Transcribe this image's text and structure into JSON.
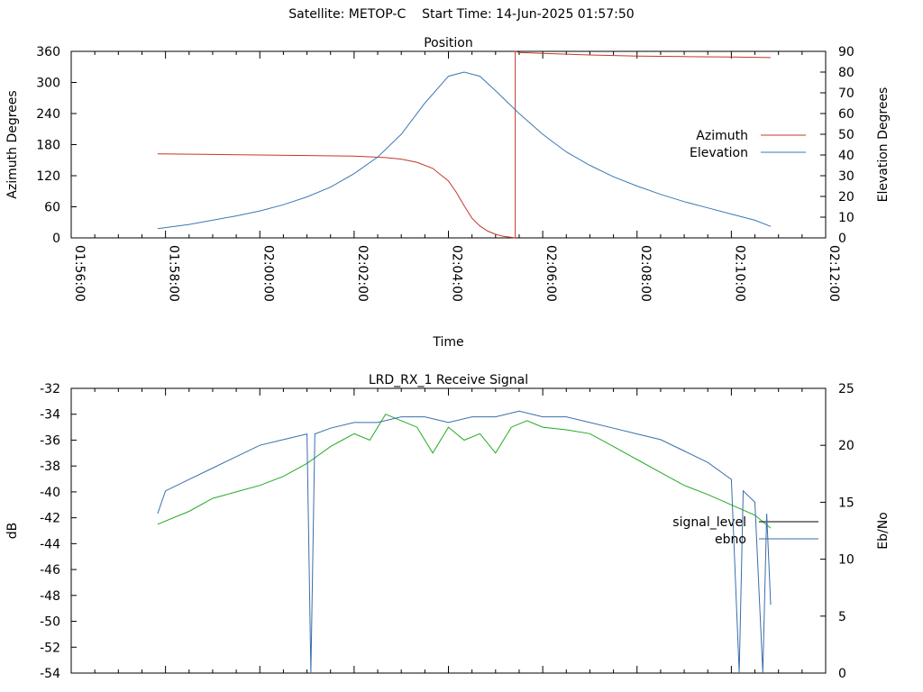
{
  "header": {
    "satellite_label": "Satellite: METOP-C",
    "start_time_label": "Start Time: 14-Jun-2025 01:57:50"
  },
  "colors": {
    "azimuth": "#c0392b",
    "elevation": "#3a78b5",
    "signal_level": "#22aa22",
    "ebno": "#3a6eaa",
    "axis": "#000000"
  },
  "chart_data": [
    {
      "type": "line",
      "title": "Position",
      "xlabel": "Time",
      "ylabel": "Azimuth Degrees",
      "y2label": "Elevation Degrees",
      "xlim": [
        "01:56:00",
        "02:12:00"
      ],
      "ylim": [
        0,
        360
      ],
      "y2lim": [
        0,
        90
      ],
      "x_ticks": [
        "01:56:00",
        "01:58:00",
        "02:00:00",
        "02:02:00",
        "02:04:00",
        "02:06:00",
        "02:08:00",
        "02:10:00",
        "02:12:00"
      ],
      "y_ticks": [
        "0",
        "60",
        "120",
        "180",
        "240",
        "300",
        "360"
      ],
      "y2_ticks": [
        "0",
        "10",
        "20",
        "30",
        "40",
        "50",
        "60",
        "70",
        "80",
        "90"
      ],
      "legend_position": "right",
      "series": [
        {
          "name": "Azimuth",
          "axis": "y",
          "x": [
            "01:57:50",
            "01:59:00",
            "02:00:00",
            "02:01:00",
            "02:02:00",
            "02:02:40",
            "02:03:00",
            "02:03:20",
            "02:03:40",
            "02:04:00",
            "02:04:10",
            "02:04:20",
            "02:04:30",
            "02:04:40",
            "02:04:50",
            "02:05:00",
            "02:05:10",
            "02:05:20",
            "02:05:25",
            "02:05:25",
            "02:05:30",
            "02:06:00",
            "02:07:00",
            "02:08:00",
            "02:09:00",
            "02:10:00",
            "02:10:50"
          ],
          "values": [
            162,
            161,
            160,
            159,
            158,
            155,
            152,
            146,
            134,
            110,
            88,
            62,
            38,
            23,
            13,
            7,
            3,
            1,
            0,
            360,
            358,
            356,
            353,
            351,
            350,
            349,
            348
          ]
        },
        {
          "name": "Elevation",
          "axis": "y2",
          "x": [
            "01:57:50",
            "01:58:30",
            "01:59:00",
            "01:59:30",
            "02:00:00",
            "02:00:30",
            "02:01:00",
            "02:01:30",
            "02:02:00",
            "02:02:30",
            "02:03:00",
            "02:03:30",
            "02:04:00",
            "02:04:20",
            "02:04:40",
            "02:05:00",
            "02:05:30",
            "02:06:00",
            "02:06:30",
            "02:07:00",
            "02:07:30",
            "02:08:00",
            "02:08:30",
            "02:09:00",
            "02:09:30",
            "02:10:00",
            "02:10:30",
            "02:10:50"
          ],
          "values": [
            4.5,
            6.5,
            8.5,
            10.6,
            13.0,
            16.0,
            19.8,
            24.5,
            31.0,
            39.0,
            50.0,
            65.0,
            78.0,
            80.0,
            78.0,
            71.0,
            60.0,
            50.0,
            41.5,
            35.0,
            29.5,
            25.0,
            21.0,
            17.5,
            14.5,
            11.5,
            8.5,
            5.5
          ]
        }
      ]
    },
    {
      "type": "line",
      "title": "LRD_RX_1 Receive Signal",
      "xlabel": "",
      "ylabel": "dB",
      "y2label": "Eb/No",
      "xlim": [
        "01:56:00",
        "02:12:00"
      ],
      "ylim": [
        -54,
        -32
      ],
      "y2lim": [
        0,
        25
      ],
      "y_ticks": [
        "-32",
        "-34",
        "-36",
        "-38",
        "-40",
        "-42",
        "-44",
        "-46",
        "-48",
        "-50",
        "-52",
        "-54"
      ],
      "y2_ticks": [
        "0",
        "5",
        "10",
        "15",
        "20",
        "25"
      ],
      "legend_position": "right",
      "series": [
        {
          "name": "signal_level",
          "axis": "y",
          "x": [
            "01:57:50",
            "01:58:30",
            "01:59:00",
            "01:59:30",
            "02:00:00",
            "02:00:30",
            "02:01:00",
            "02:01:30",
            "02:02:00",
            "02:02:20",
            "02:02:40",
            "02:03:00",
            "02:03:20",
            "02:03:40",
            "02:04:00",
            "02:04:20",
            "02:04:40",
            "02:05:00",
            "02:05:20",
            "02:05:40",
            "02:06:00",
            "02:06:30",
            "02:07:00",
            "02:07:30",
            "02:08:00",
            "02:08:30",
            "02:09:00",
            "02:09:30",
            "02:10:00",
            "02:10:30",
            "02:10:50"
          ],
          "values": [
            -42.5,
            -41.5,
            -40.5,
            -40.0,
            -39.5,
            -38.8,
            -37.8,
            -36.5,
            -35.5,
            -36.0,
            -34.0,
            -34.5,
            -35.0,
            -37.0,
            -35.0,
            -36.0,
            -35.5,
            -37.0,
            -35.0,
            -34.5,
            -35.0,
            -35.2,
            -35.5,
            -36.5,
            -37.5,
            -38.5,
            -39.5,
            -40.2,
            -41.0,
            -41.8,
            -42.8
          ]
        },
        {
          "name": "ebno",
          "axis": "y2",
          "x": [
            "01:57:50",
            "01:58:00",
            "01:58:30",
            "01:59:00",
            "01:59:30",
            "02:00:00",
            "02:00:30",
            "02:01:00",
            "02:01:05",
            "02:01:10",
            "02:01:30",
            "02:02:00",
            "02:02:30",
            "02:03:00",
            "02:03:30",
            "02:04:00",
            "02:04:30",
            "02:05:00",
            "02:05:30",
            "02:06:00",
            "02:06:30",
            "02:07:00",
            "02:07:30",
            "02:08:00",
            "02:08:30",
            "02:09:00",
            "02:09:30",
            "02:10:00",
            "02:10:10",
            "02:10:15",
            "02:10:30",
            "02:10:40",
            "02:10:45",
            "02:10:50"
          ],
          "values": [
            14.0,
            16.0,
            17.0,
            18.0,
            19.0,
            20.0,
            20.5,
            21.0,
            0.0,
            21.0,
            21.5,
            22.0,
            22.0,
            22.5,
            22.5,
            22.0,
            22.5,
            22.5,
            23.0,
            22.5,
            22.5,
            22.0,
            21.5,
            21.0,
            20.5,
            19.5,
            18.5,
            17.0,
            0.0,
            16.0,
            15.0,
            0.0,
            14.0,
            6.0
          ]
        }
      ]
    }
  ]
}
